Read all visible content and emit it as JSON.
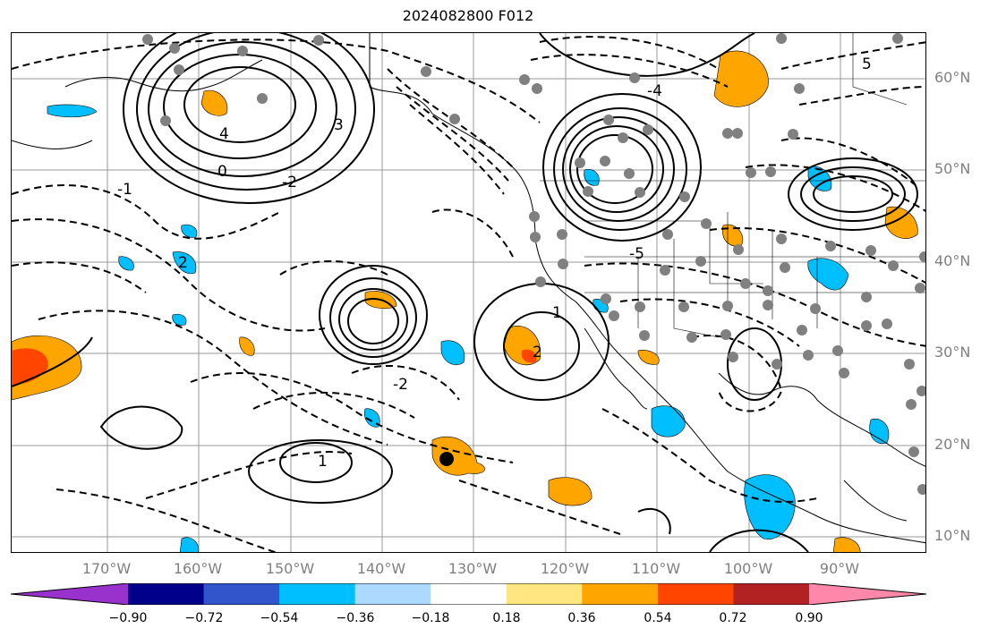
{
  "title": "2024082800 F012",
  "lat_labels": [
    "60°N",
    "50°N",
    "40°N",
    "30°N",
    "20°N",
    "10°N"
  ],
  "lon_labels": [
    "170°W",
    "160°W",
    "150°W",
    "140°W",
    "130°W",
    "120°W",
    "110°W",
    "100°W",
    "90°W"
  ],
  "colorbar": {
    "ticks": [
      "−0.90",
      "−0.72",
      "−0.54",
      "−0.36",
      "−0.18",
      "0.18",
      "0.36",
      "0.54",
      "0.72",
      "0.90"
    ],
    "colors": [
      "#9932cc",
      "#00008b",
      "#3355cc",
      "#00bfff",
      "#add8ff",
      "#ffffff",
      "#ffe680",
      "#ffa500",
      "#ff4500",
      "#b22222",
      "#ff88aa"
    ]
  },
  "contour_labels": [
    "0",
    "1",
    "-1",
    "2",
    "-2",
    "3",
    "4",
    "5",
    "-4",
    "-5",
    "1",
    "2",
    "-2"
  ]
}
